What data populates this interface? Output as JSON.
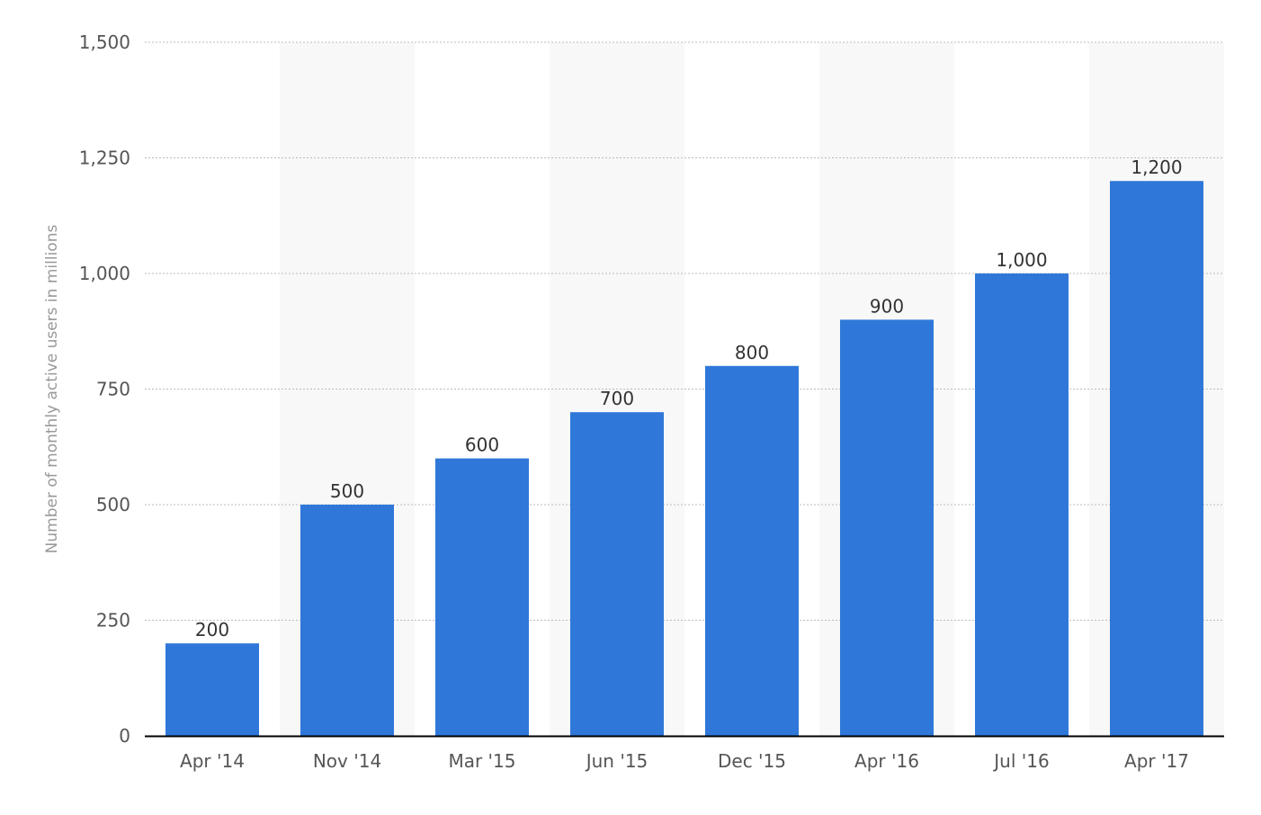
{
  "chart_data": {
    "type": "bar",
    "categories": [
      "Apr '14",
      "Nov '14",
      "Mar '15",
      "Jun '15",
      "Dec '15",
      "Apr '16",
      "Jul '16",
      "Apr '17"
    ],
    "values": [
      200,
      500,
      600,
      700,
      800,
      900,
      1000,
      1200
    ],
    "value_labels": [
      "200",
      "500",
      "600",
      "700",
      "800",
      "900",
      "1,000",
      "1,200"
    ],
    "ylabel": "Number of monthly active users in millions",
    "ylim": [
      0,
      1500
    ],
    "yticks": [
      0,
      250,
      500,
      750,
      1000,
      1250,
      1500
    ],
    "ytick_labels": [
      "0",
      "250",
      "500",
      "750",
      "1,000",
      "1,250",
      "1,500"
    ],
    "grid": true,
    "colors": {
      "bar": "#2f78d9",
      "band": "#f8f8f8",
      "grid": "#bbbbbb",
      "axis": "#000000"
    }
  }
}
